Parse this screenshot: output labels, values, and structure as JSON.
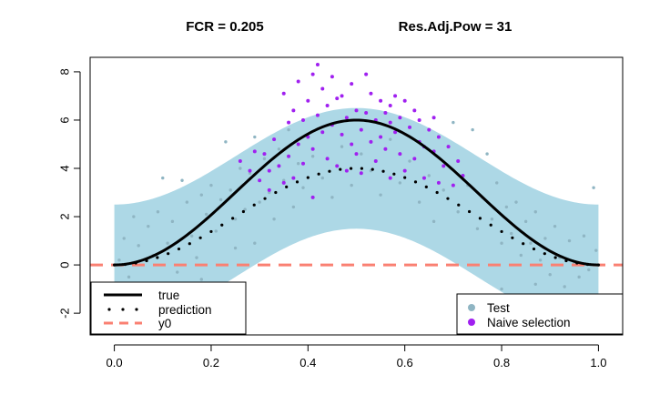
{
  "chart_data": {
    "type": "scatter",
    "title_parts": [
      "FCR =  0.205",
      "Res.Adj.Pow =  31"
    ],
    "xlabel": "",
    "ylabel": "",
    "xlim": [
      -0.05,
      1.05
    ],
    "ylim": [
      -2.9,
      8.6
    ],
    "x_ticks": [
      0.0,
      0.2,
      0.4,
      0.6,
      0.8,
      1.0
    ],
    "x_tick_labels": [
      "0.0",
      "0.2",
      "0.4",
      "0.6",
      "0.8",
      "1.0"
    ],
    "y_ticks": [
      -2,
      0,
      2,
      4,
      6,
      8
    ],
    "y_tick_labels": [
      "-2",
      "0",
      "2",
      "4",
      "6",
      "8"
    ],
    "true_function": "6*sin(pi*x)^2",
    "prediction_function": "4*sin(pi*x)^2",
    "band_halfwidth": 2.5,
    "y0": 0,
    "colors": {
      "band": "#add8e6",
      "test": "#8fb5c3",
      "naive": "#a020f0",
      "true": "#000000",
      "prediction": "#000000",
      "y0": "#fa8072"
    },
    "legend_left": {
      "position": "bottom-left",
      "entries": [
        {
          "label": "true",
          "style": "solid"
        },
        {
          "label": "prediction",
          "style": "dotted"
        },
        {
          "label": "y0",
          "style": "dashed"
        }
      ]
    },
    "legend_right": {
      "position": "bottom-right",
      "entries": [
        {
          "label": "Test",
          "color": "test"
        },
        {
          "label": "Naive selection",
          "color": "naive"
        }
      ]
    },
    "test_points": [
      [
        0.01,
        0.2
      ],
      [
        0.02,
        1.1
      ],
      [
        0.03,
        -0.5
      ],
      [
        0.04,
        2.0
      ],
      [
        0.05,
        0.8
      ],
      [
        0.06,
        -0.9
      ],
      [
        0.07,
        1.6
      ],
      [
        0.08,
        0.4
      ],
      [
        0.09,
        2.2
      ],
      [
        0.1,
        3.6
      ],
      [
        0.11,
        0.9
      ],
      [
        0.12,
        1.8
      ],
      [
        0.13,
        -0.3
      ],
      [
        0.14,
        3.5
      ],
      [
        0.15,
        2.6
      ],
      [
        0.16,
        1.2
      ],
      [
        0.17,
        0.3
      ],
      [
        0.18,
        2.9
      ],
      [
        0.19,
        2.1
      ],
      [
        0.2,
        3.3
      ],
      [
        0.21,
        1.4
      ],
      [
        0.22,
        2.7
      ],
      [
        0.23,
        5.1
      ],
      [
        0.24,
        3.1
      ],
      [
        0.25,
        1.9
      ],
      [
        0.26,
        4.0
      ],
      [
        0.27,
        2.3
      ],
      [
        0.28,
        3.8
      ],
      [
        0.29,
        5.3
      ],
      [
        0.3,
        2.6
      ],
      [
        0.31,
        4.4
      ],
      [
        0.32,
        3.0
      ],
      [
        0.33,
        1.9
      ],
      [
        0.34,
        4.8
      ],
      [
        0.35,
        3.5
      ],
      [
        0.37,
        2.4
      ],
      [
        0.38,
        4.2
      ],
      [
        0.36,
        5.6
      ],
      [
        0.39,
        3.2
      ],
      [
        0.41,
        4.5
      ],
      [
        0.43,
        3.6
      ],
      [
        0.45,
        2.8
      ],
      [
        0.47,
        4.9
      ],
      [
        0.49,
        3.3
      ],
      [
        0.51,
        4.6
      ],
      [
        0.53,
        3.9
      ],
      [
        0.55,
        2.9
      ],
      [
        0.57,
        5.2
      ],
      [
        0.59,
        3.4
      ],
      [
        0.61,
        4.3
      ],
      [
        0.63,
        2.6
      ],
      [
        0.65,
        3.7
      ],
      [
        0.66,
        1.8
      ],
      [
        0.68,
        3.1
      ],
      [
        0.7,
        5.9
      ],
      [
        0.71,
        2.2
      ],
      [
        0.73,
        3.3
      ],
      [
        0.74,
        5.6
      ],
      [
        0.75,
        1.5
      ],
      [
        0.76,
        2.8
      ],
      [
        0.77,
        4.6
      ],
      [
        0.78,
        1.9
      ],
      [
        0.79,
        3.4
      ],
      [
        0.8,
        0.9
      ],
      [
        0.81,
        2.4
      ],
      [
        0.82,
        1.3
      ],
      [
        0.83,
        2.6
      ],
      [
        0.84,
        0.4
      ],
      [
        0.85,
        1.8
      ],
      [
        0.86,
        0.9
      ],
      [
        0.87,
        2.2
      ],
      [
        0.88,
        0.2
      ],
      [
        0.89,
        1.1
      ],
      [
        0.9,
        -0.4
      ],
      [
        0.91,
        1.6
      ],
      [
        0.92,
        0.3
      ],
      [
        0.93,
        -0.9
      ],
      [
        0.94,
        1.0
      ],
      [
        0.95,
        0.1
      ],
      [
        0.96,
        -0.5
      ],
      [
        0.97,
        1.2
      ],
      [
        0.98,
        -0.2
      ],
      [
        0.99,
        3.2
      ],
      [
        0.995,
        0.6
      ],
      [
        0.12,
        -0.8
      ],
      [
        0.18,
        -0.6
      ],
      [
        0.25,
        0.7
      ],
      [
        0.29,
        0.9
      ],
      [
        0.8,
        -1.0
      ],
      [
        0.87,
        -0.8
      ]
    ],
    "naive_points": [
      [
        0.26,
        4.3
      ],
      [
        0.28,
        3.9
      ],
      [
        0.29,
        4.7
      ],
      [
        0.3,
        3.5
      ],
      [
        0.31,
        4.6
      ],
      [
        0.32,
        3.1
      ],
      [
        0.33,
        5.2
      ],
      [
        0.34,
        4.1
      ],
      [
        0.35,
        7.1
      ],
      [
        0.35,
        3.4
      ],
      [
        0.36,
        5.9
      ],
      [
        0.36,
        4.5
      ],
      [
        0.37,
        6.4
      ],
      [
        0.37,
        3.6
      ],
      [
        0.38,
        5.0
      ],
      [
        0.38,
        7.6
      ],
      [
        0.39,
        6.0
      ],
      [
        0.39,
        4.2
      ],
      [
        0.4,
        6.8
      ],
      [
        0.4,
        5.3
      ],
      [
        0.41,
        7.9
      ],
      [
        0.41,
        4.8
      ],
      [
        0.41,
        2.8
      ],
      [
        0.42,
        8.3
      ],
      [
        0.42,
        6.2
      ],
      [
        0.43,
        7.3
      ],
      [
        0.43,
        5.5
      ],
      [
        0.44,
        6.6
      ],
      [
        0.44,
        4.4
      ],
      [
        0.45,
        7.8
      ],
      [
        0.45,
        5.8
      ],
      [
        0.46,
        6.9
      ],
      [
        0.46,
        4.1
      ],
      [
        0.47,
        5.4
      ],
      [
        0.47,
        7.0
      ],
      [
        0.48,
        6.1
      ],
      [
        0.48,
        3.9
      ],
      [
        0.49,
        7.5
      ],
      [
        0.49,
        5.0
      ],
      [
        0.5,
        6.4
      ],
      [
        0.5,
        4.6
      ],
      [
        0.51,
        5.6
      ],
      [
        0.51,
        3.8
      ],
      [
        0.52,
        7.9
      ],
      [
        0.52,
        6.3
      ],
      [
        0.53,
        5.1
      ],
      [
        0.53,
        7.1
      ],
      [
        0.54,
        6.0
      ],
      [
        0.54,
        4.3
      ],
      [
        0.55,
        6.8
      ],
      [
        0.55,
        5.3
      ],
      [
        0.56,
        4.8
      ],
      [
        0.56,
        6.3
      ],
      [
        0.57,
        6.6
      ],
      [
        0.57,
        3.6
      ],
      [
        0.58,
        7.0
      ],
      [
        0.58,
        5.5
      ],
      [
        0.59,
        4.6
      ],
      [
        0.59,
        6.1
      ],
      [
        0.6,
        6.8
      ],
      [
        0.6,
        3.9
      ],
      [
        0.61,
        5.7
      ],
      [
        0.62,
        6.4
      ],
      [
        0.62,
        4.4
      ],
      [
        0.63,
        5.1
      ],
      [
        0.63,
        6.0
      ],
      [
        0.64,
        4.9
      ],
      [
        0.64,
        3.6
      ],
      [
        0.65,
        5.6
      ],
      [
        0.66,
        4.7
      ],
      [
        0.66,
        6.1
      ],
      [
        0.67,
        5.3
      ],
      [
        0.67,
        3.4
      ],
      [
        0.68,
        4.1
      ],
      [
        0.69,
        4.9
      ],
      [
        0.7,
        3.3
      ],
      [
        0.71,
        4.3
      ],
      [
        0.72,
        3.7
      ],
      [
        0.32,
        3.9
      ],
      [
        0.57,
        5.9
      ]
    ]
  }
}
